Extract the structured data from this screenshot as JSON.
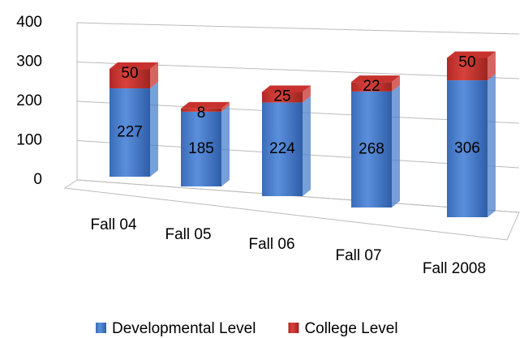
{
  "chart_data": {
    "type": "bar3d_stacked",
    "categories": [
      "Fall 04",
      "Fall 05",
      "Fall 06",
      "Fall 07",
      "Fall 2008"
    ],
    "series": [
      {
        "name": "Developmental Level",
        "color": "#4a7fcc",
        "values": [
          227,
          185,
          224,
          268,
          306
        ]
      },
      {
        "name": "College Level",
        "color": "#c8322e",
        "values": [
          50,
          8,
          25,
          22,
          50
        ]
      }
    ],
    "ylim": [
      0,
      400
    ],
    "yticks": [
      0,
      100,
      200,
      300,
      400
    ],
    "grid": true,
    "legend": "bottom"
  }
}
